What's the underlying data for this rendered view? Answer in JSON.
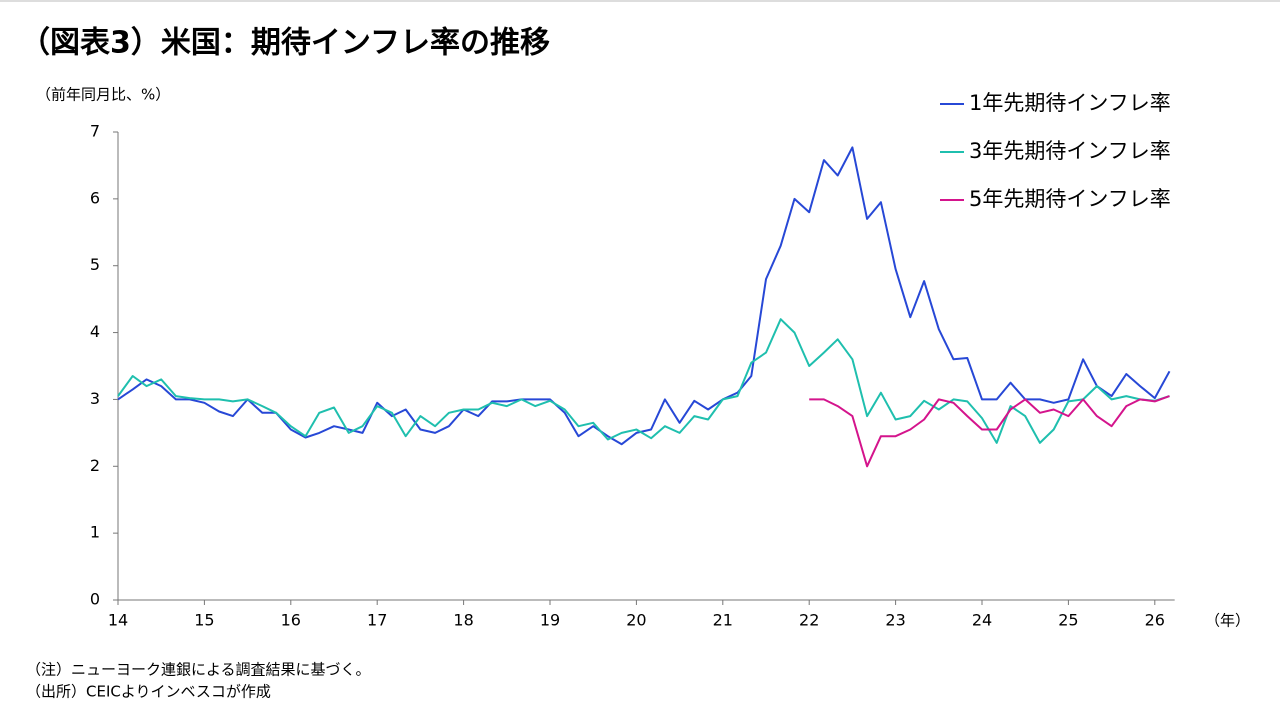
{
  "chart_data": {
    "type": "line",
    "title": "（図表3）米国：期待インフレ率の推移",
    "y_label": "（前年同月比、%）",
    "x_label": "（年）",
    "notes": [
      "（注）ニューヨーク連銀による調査結果に基づく。",
      "（出所）CEICよりインベスコが作成"
    ],
    "x": [
      14,
      14.17,
      14.33,
      14.5,
      14.67,
      14.83,
      15,
      15.17,
      15.33,
      15.5,
      15.67,
      15.83,
      16,
      16.17,
      16.33,
      16.5,
      16.67,
      16.83,
      17,
      17.17,
      17.33,
      17.5,
      17.67,
      17.83,
      18,
      18.17,
      18.33,
      18.5,
      18.67,
      18.83,
      19,
      19.17,
      19.33,
      19.5,
      19.67,
      19.83,
      20,
      20.17,
      20.33,
      20.5,
      20.67,
      20.83,
      21,
      21.17,
      21.33,
      21.5,
      21.67,
      21.83,
      22,
      22.17,
      22.33,
      22.5,
      22.67,
      22.83,
      23,
      23.17,
      23.33,
      23.5,
      23.67,
      23.83,
      24,
      24.17,
      24.33,
      24.5,
      24.67,
      24.83,
      25,
      25.17,
      25.33,
      25.5,
      25.67,
      25.83,
      26,
      26.17
    ],
    "series": [
      {
        "name": "1年先期待インフレ率",
        "color": "#2748d6",
        "values": [
          3.0,
          3.15,
          3.3,
          3.2,
          3.0,
          3.0,
          2.95,
          2.82,
          2.75,
          3.0,
          2.8,
          2.8,
          2.55,
          2.43,
          2.5,
          2.6,
          2.55,
          2.5,
          2.95,
          2.75,
          2.85,
          2.55,
          2.5,
          2.6,
          2.85,
          2.75,
          2.97,
          2.97,
          3.0,
          3.0,
          3.0,
          2.8,
          2.45,
          2.6,
          2.45,
          2.33,
          2.5,
          2.55,
          3.0,
          2.65,
          2.98,
          2.85,
          3.0,
          3.1,
          3.35,
          4.8,
          5.3,
          6.0,
          5.8,
          6.58,
          6.35,
          6.77,
          5.7,
          5.95,
          4.95,
          4.23,
          4.77,
          4.05,
          3.6,
          3.62,
          3.0,
          3.0,
          3.25,
          3.0,
          3.0,
          2.95,
          3.0,
          3.6,
          3.2,
          3.05,
          3.38,
          3.2,
          3.02,
          3.42
        ]
      },
      {
        "name": "3年先期待インフレ率",
        "color": "#1fbfae",
        "values": [
          3.05,
          3.35,
          3.2,
          3.3,
          3.05,
          3.02,
          3.0,
          3.0,
          2.97,
          3.0,
          2.9,
          2.8,
          2.6,
          2.45,
          2.8,
          2.88,
          2.5,
          2.6,
          2.9,
          2.8,
          2.45,
          2.75,
          2.6,
          2.8,
          2.85,
          2.85,
          2.95,
          2.9,
          3.0,
          2.9,
          2.98,
          2.85,
          2.6,
          2.65,
          2.4,
          2.5,
          2.55,
          2.42,
          2.6,
          2.5,
          2.75,
          2.7,
          3.0,
          3.05,
          3.55,
          3.7,
          4.2,
          4.0,
          3.5,
          3.7,
          3.9,
          3.6,
          2.75,
          3.1,
          2.7,
          2.75,
          2.98,
          2.85,
          3.0,
          2.97,
          2.72,
          2.35,
          2.9,
          2.75,
          2.35,
          2.55,
          2.97,
          3.0,
          3.2,
          3.0,
          3.05,
          3.0,
          2.98,
          3.05
        ]
      },
      {
        "name": "5年先期待インフレ率",
        "color": "#d4148c",
        "values": [
          null,
          null,
          null,
          null,
          null,
          null,
          null,
          null,
          null,
          null,
          null,
          null,
          null,
          null,
          null,
          null,
          null,
          null,
          null,
          null,
          null,
          null,
          null,
          null,
          null,
          null,
          null,
          null,
          null,
          null,
          null,
          null,
          null,
          null,
          null,
          null,
          null,
          null,
          null,
          null,
          null,
          null,
          null,
          null,
          null,
          null,
          null,
          null,
          3.0,
          3.0,
          2.9,
          2.75,
          2.0,
          2.45,
          2.45,
          2.55,
          2.7,
          3.0,
          2.95,
          2.75,
          2.55,
          2.55,
          2.85,
          3.0,
          2.8,
          2.85,
          2.75,
          3.0,
          2.75,
          2.6,
          2.9,
          3.0,
          2.97,
          3.05
        ]
      }
    ],
    "xlim": [
      14,
      26.23
    ],
    "xticks": [
      14,
      15,
      16,
      17,
      18,
      19,
      20,
      21,
      22,
      23,
      24,
      25,
      26
    ],
    "ylim": [
      0,
      7
    ],
    "yticks": [
      0,
      1,
      2,
      3,
      4,
      5,
      6,
      7
    ],
    "grid": false,
    "legend": "top-right"
  }
}
